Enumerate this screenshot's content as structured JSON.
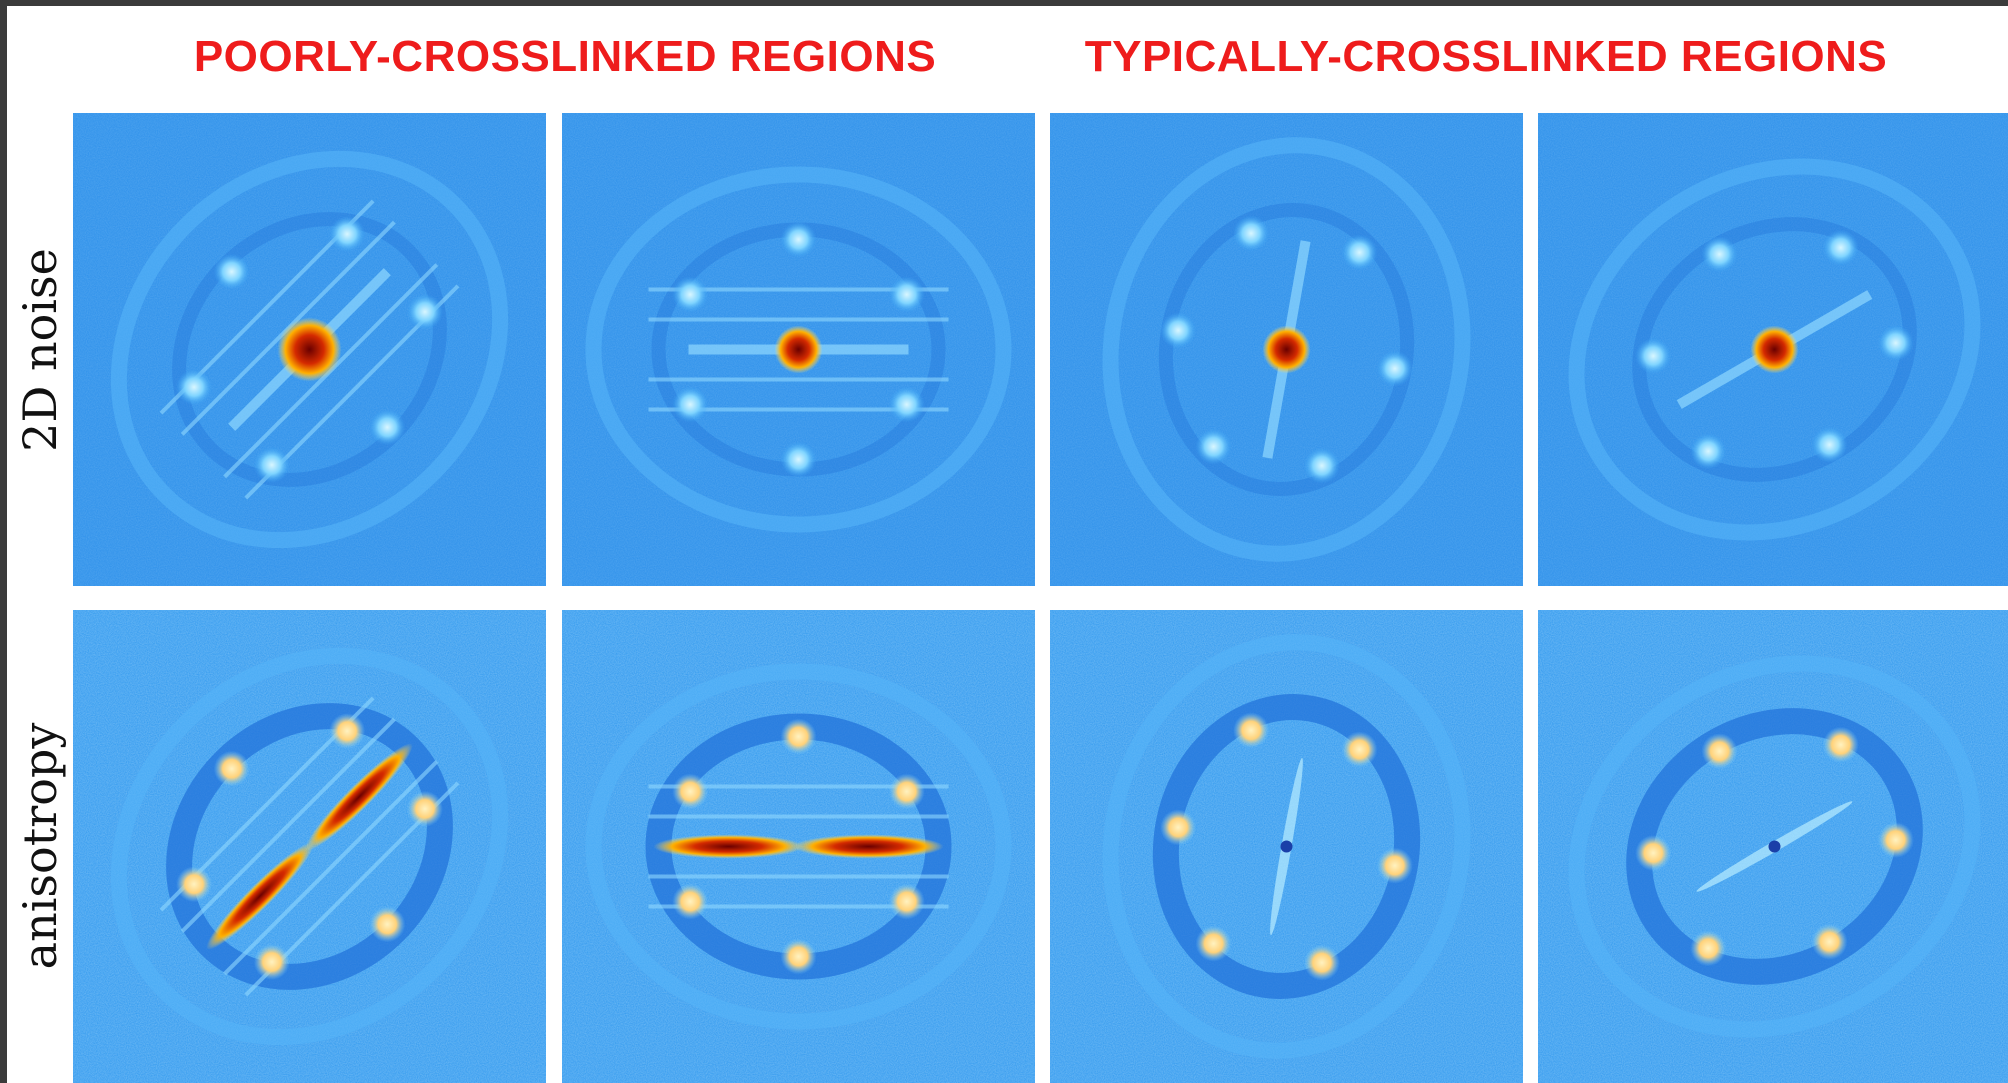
{
  "header": {
    "columns": [
      "POORLY-CROSSLINKED REGIONS",
      "TYPICALLY-CROSSLINKED REGIONS"
    ]
  },
  "rows": [
    "2D noise",
    "anisotropy"
  ]
}
